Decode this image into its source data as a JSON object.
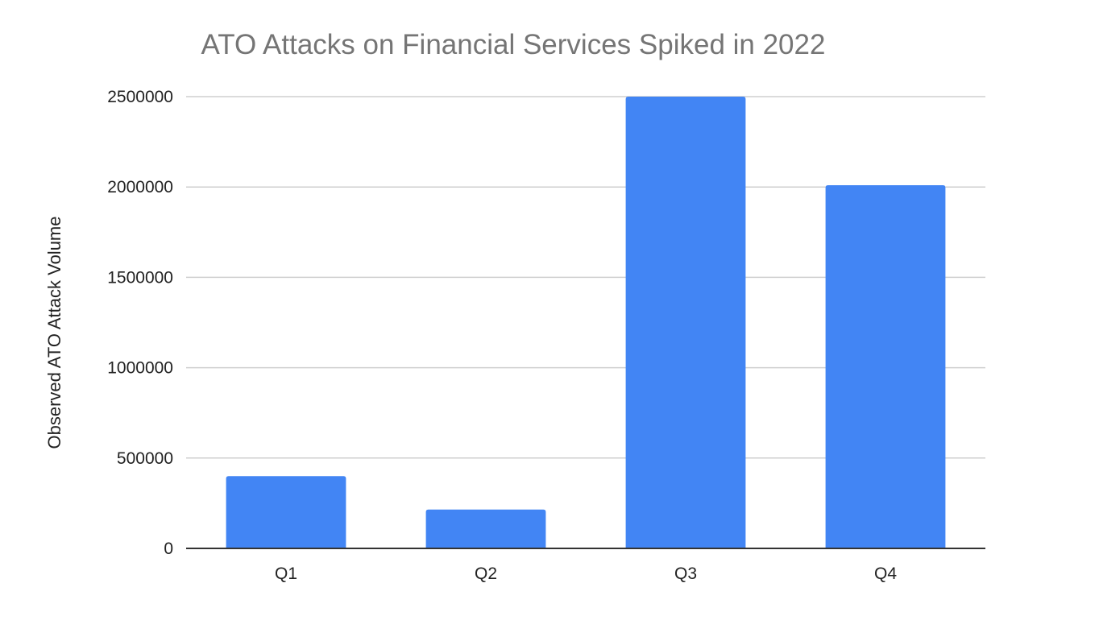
{
  "chart_data": {
    "type": "bar",
    "title": "ATO Attacks on Financial Services Spiked in 2022",
    "xlabel": "",
    "ylabel": "Observed ATO Attack Volume",
    "categories": [
      "Q1",
      "Q2",
      "Q3",
      "Q4"
    ],
    "values": [
      400000,
      215000,
      2500000,
      2010000
    ],
    "ylim": [
      0,
      2500000
    ],
    "yticks": [
      0,
      500000,
      1000000,
      1500000,
      2000000,
      2500000
    ],
    "ytick_labels": [
      "0",
      "500000",
      "1000000",
      "1500000",
      "2000000",
      "2500000"
    ],
    "grid": true,
    "legend": "none",
    "bar_color": "#4285f4"
  }
}
